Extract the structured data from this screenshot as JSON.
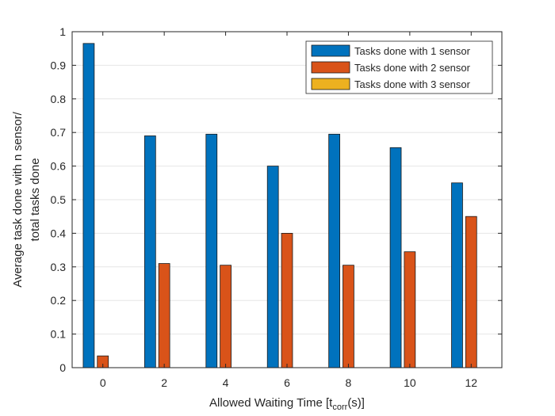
{
  "chart_data": {
    "type": "bar",
    "categories": [
      "0",
      "2",
      "4",
      "6",
      "8",
      "10",
      "12"
    ],
    "series": [
      {
        "name": "Tasks done with 1 sensor",
        "values": [
          0.965,
          0.69,
          0.695,
          0.6,
          0.695,
          0.655,
          0.55
        ]
      },
      {
        "name": "Tasks done with 2 sensor",
        "values": [
          0.035,
          0.31,
          0.305,
          0.4,
          0.305,
          0.345,
          0.45
        ]
      },
      {
        "name": "Tasks done with 3 sensor",
        "values": [
          0,
          0,
          0,
          0,
          0,
          0,
          0
        ]
      }
    ],
    "colors": [
      "#0072BD",
      "#D95319",
      "#EDB120"
    ],
    "xlabel_main": "Allowed Waiting Time [t",
    "xlabel_sub": "corr",
    "xlabel_tail": "(s)]",
    "ylabel_line1": "Average task done with n sensor/",
    "ylabel_line2": "total tasks done",
    "yticks": [
      "0",
      "0.1",
      "0.2",
      "0.3",
      "0.4",
      "0.5",
      "0.6",
      "0.7",
      "0.8",
      "0.9",
      "1"
    ],
    "ylim": [
      0,
      1
    ],
    "grid": "horizontal",
    "legend_position": "top-right"
  }
}
